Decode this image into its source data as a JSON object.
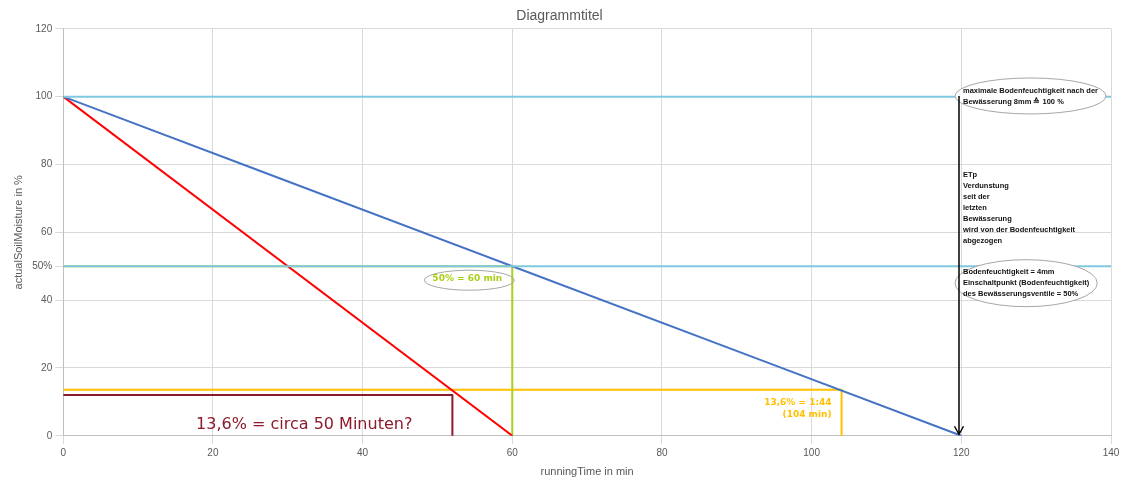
{
  "chart_data": {
    "type": "line",
    "title": "Diagrammtitel",
    "xlabel": "runningTime in min",
    "ylabel": "actualSoilMoisture in %",
    "xlim": [
      0,
      140
    ],
    "xticks": [
      0,
      20,
      40,
      60,
      80,
      100,
      120,
      140
    ],
    "ylim": [
      0,
      120
    ],
    "yticks": [
      0,
      20,
      40,
      {
        "value": 50,
        "label": "50%"
      },
      60,
      80,
      100,
      120
    ],
    "grid": true,
    "legend": false,
    "marker": "none",
    "series": [
      {
        "color": "#7fc8e0",
        "x": [
          0,
          140
        ],
        "values": [
          100,
          100
        ]
      },
      {
        "color": "#7fc8e0",
        "x": [
          0,
          140
        ],
        "values": [
          50,
          50
        ]
      },
      {
        "color": "#4472c4",
        "x": [
          0,
          120
        ],
        "values": [
          100,
          0
        ]
      },
      {
        "color": "#ff0000",
        "x": [
          0,
          60
        ],
        "values": [
          100,
          0
        ]
      },
      {
        "color": "#a9d018",
        "x": [
          0,
          60,
          60
        ],
        "values": [
          50,
          50,
          0
        ]
      },
      {
        "color": "#ffc000",
        "x": [
          0,
          104,
          104
        ],
        "values": [
          13.6,
          13.6,
          0
        ]
      },
      {
        "color": "#8b1a2b",
        "x": [
          0,
          52,
          52
        ],
        "values": [
          12,
          12,
          0
        ]
      }
    ],
    "annotations": [
      "maximale Bodenfeuchtigkeit nach der\nBewässerung 8mm ≙ 100 %",
      "ETp\nVerdunstung\nseit der\nletzten\nBewässerung\nwird von der Bodenfeuchtigkeit\nabgezogen",
      "Bodenfeuchtigkeit = 4mm\nEinschaltpunkt (Bodenfeuchtigkeit)\ndes Bewässerungsventile = 50%",
      {
        "text": "50% = 60 min",
        "x": 60,
        "y": 50
      },
      {
        "text": "13,6% = 1:44\n(104 min)",
        "x": 104,
        "y": 13.6
      },
      {
        "text": "13,6% = circa 50 Minuten?",
        "x": 52,
        "y": 12
      }
    ]
  }
}
